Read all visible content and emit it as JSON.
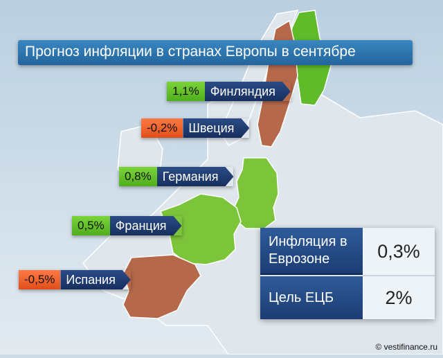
{
  "title": "Прогноз инфляции в странах Европы в сентябре",
  "chart_data": {
    "type": "map",
    "title": "Прогноз инфляции в странах Европы в сентябре",
    "categories": [
      "Финляндия",
      "Швеция",
      "Германия",
      "Франция",
      "Испания"
    ],
    "labels": [
      "1,1%",
      "-0,2%",
      "0,8%",
      "0,5%",
      "-0,5%"
    ],
    "values": [
      1.1,
      -0.2,
      0.8,
      0.5,
      -0.5
    ],
    "colors": [
      "#5cbd24",
      "#f06030",
      "#5cbd24",
      "#5cbd24",
      "#f06030"
    ]
  },
  "eurozone": {
    "inflation_label": "Инфляция в Еврозоне",
    "inflation_value": "0,3%",
    "ecb_label": "Цель ЕЦБ",
    "ecb_value": "2%"
  },
  "credit": "© vestifinance.ru",
  "colors": {
    "positive": "#5cbd24",
    "negative": "#f06030",
    "map_positive_fill": "#7cc43a",
    "map_negative_fill": "#b5694a",
    "label_dark": "#1d3a6e",
    "title_blue": "#2b72ab"
  }
}
